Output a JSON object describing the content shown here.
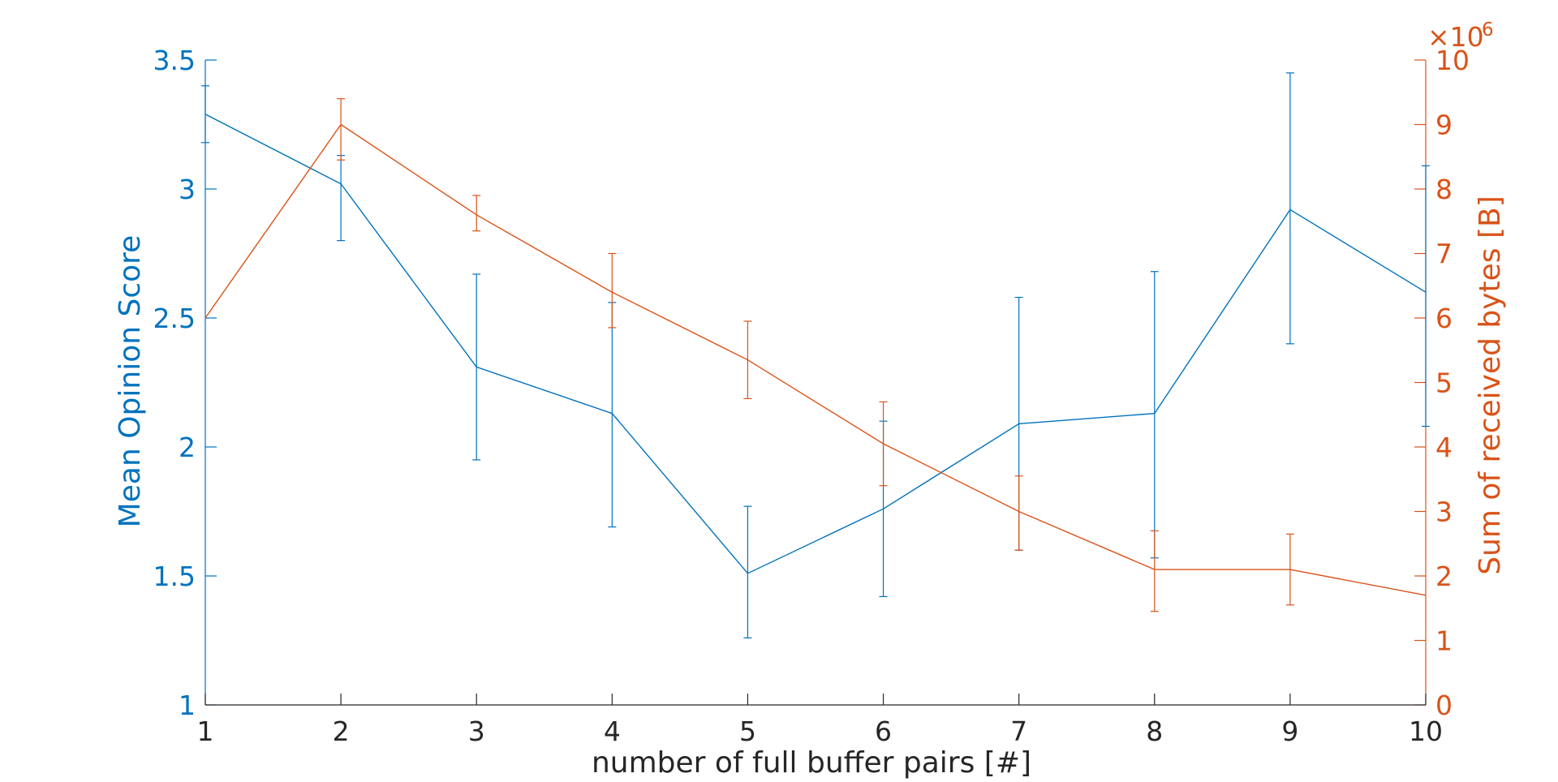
{
  "chart_data": {
    "type": "line",
    "title": "",
    "xlabel": "number of full buffer pairs [#]",
    "ylabel_left": "Mean Opinion Score",
    "ylabel_right": "Sum of received bytes [B]",
    "right_axis_multiplier": "×10",
    "right_axis_exponent": "6",
    "x": [
      1,
      2,
      3,
      4,
      5,
      6,
      7,
      8,
      9,
      10
    ],
    "xlim": [
      1,
      10
    ],
    "ylim_left": [
      1,
      3.5
    ],
    "ylim_right": [
      0,
      10
    ],
    "x_ticks": [
      "1",
      "2",
      "3",
      "4",
      "5",
      "6",
      "7",
      "8",
      "9",
      "10"
    ],
    "y_ticks_left": [
      "1",
      "1.5",
      "2",
      "2.5",
      "3",
      "3.5"
    ],
    "y_ticks_right": [
      "0",
      "1",
      "2",
      "3",
      "4",
      "5",
      "6",
      "7",
      "8",
      "9",
      "10"
    ],
    "grid": false,
    "legend": false,
    "series": [
      {
        "axis": "left",
        "color": "#0072bd",
        "values": [
          3.29,
          3.02,
          2.31,
          2.13,
          1.51,
          1.76,
          2.09,
          2.13,
          2.92,
          2.6
        ],
        "err_low": [
          3.18,
          2.8,
          1.95,
          1.69,
          1.26,
          1.42,
          1.6,
          1.57,
          2.4,
          2.08
        ],
        "err_high": [
          3.4,
          3.13,
          2.67,
          2.56,
          1.77,
          2.1,
          2.58,
          2.68,
          3.45,
          3.09
        ]
      },
      {
        "axis": "right",
        "color": "#d95319",
        "values": [
          6.0,
          9.0,
          7.6,
          6.4,
          5.35,
          4.05,
          3.0,
          2.1,
          2.1,
          1.7
        ],
        "err_low": [
          6.0,
          8.45,
          7.35,
          5.85,
          4.75,
          3.4,
          2.4,
          1.45,
          1.55,
          1.7
        ],
        "err_high": [
          6.0,
          9.4,
          7.9,
          7.0,
          5.95,
          4.7,
          3.55,
          2.7,
          2.65,
          1.7
        ]
      }
    ]
  }
}
